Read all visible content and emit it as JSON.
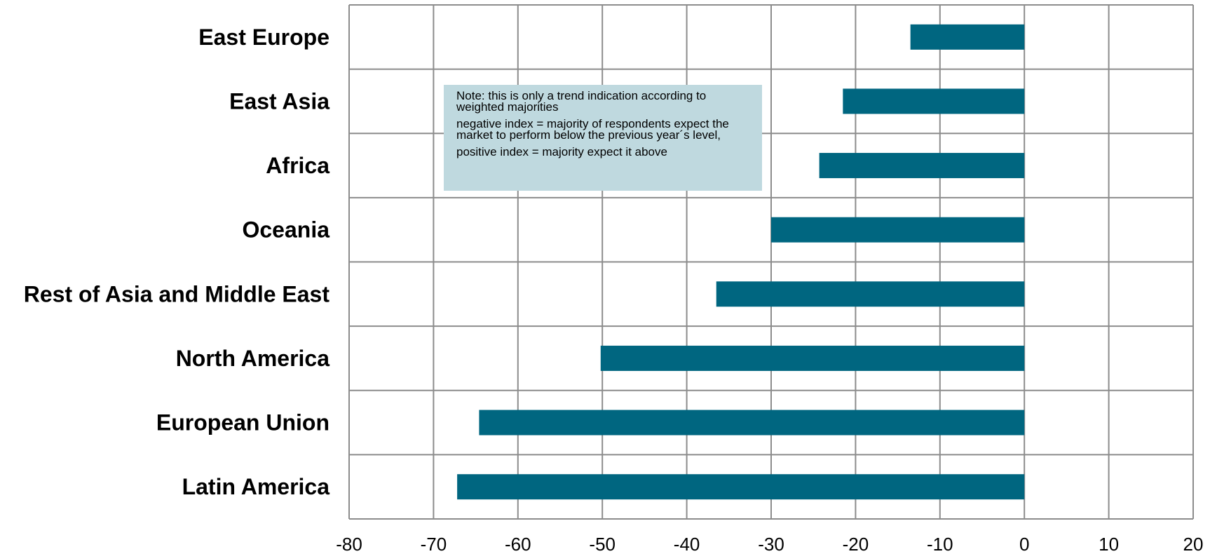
{
  "chart_data": {
    "type": "bar",
    "orientation": "horizontal",
    "categories": [
      "East Europe",
      "East Asia",
      "Africa",
      "Oceania",
      "Rest of Asia and Middle East",
      "North America",
      "European Union",
      "Latin America"
    ],
    "values": [
      -13.5,
      -21.5,
      -24.3,
      -30,
      -36.5,
      -50.2,
      -64.6,
      -67.2
    ],
    "xlim": [
      -80,
      20
    ],
    "xticks": [
      "-80",
      "-70",
      "-60",
      "-50",
      "-40",
      "-30",
      "-20",
      "-10",
      "0",
      "10",
      "20"
    ],
    "grid": true,
    "bar_color": "#006680",
    "annotation": {
      "lines": [
        "Note: this is only a trend indication according to weighted majorities",
        "negative index = majority of respondents expect the market to perform below the previous year´s level,",
        "positive index = majority expect it above"
      ],
      "background": "#bfd9df"
    }
  }
}
